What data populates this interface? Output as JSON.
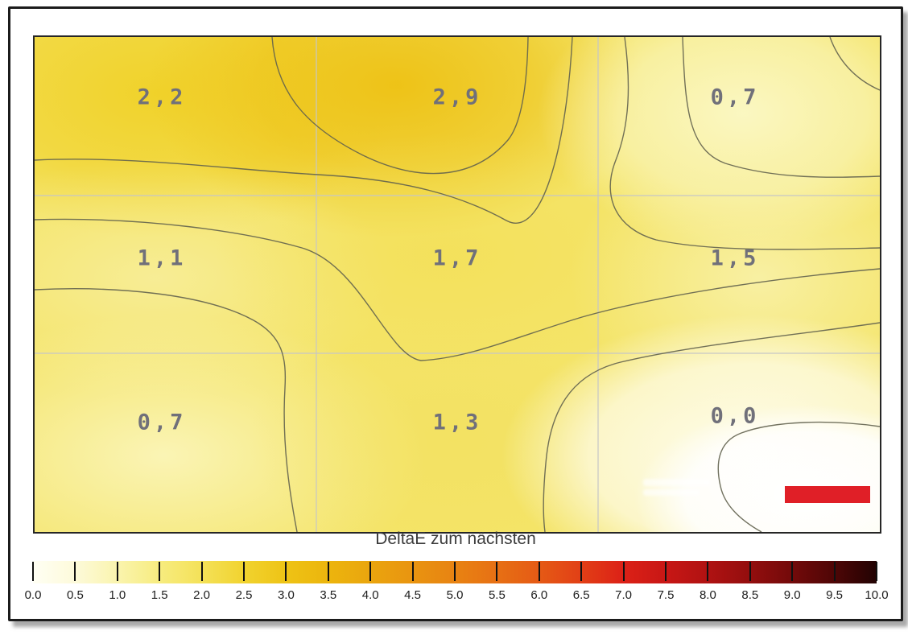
{
  "title": "DeltaE zum nächsten",
  "chart_data": {
    "type": "heatmap",
    "title": "DeltaE zum nächsten",
    "rows": 3,
    "cols": 3,
    "values": [
      [
        2.2,
        2.9,
        0.7
      ],
      [
        1.1,
        1.7,
        1.5
      ],
      [
        0.7,
        1.3,
        0.0
      ]
    ],
    "cell_labels": [
      [
        "2,2",
        "2,9",
        "0,7"
      ],
      [
        "1,1",
        "1,7",
        "1,5"
      ],
      [
        "0,7",
        "1,3",
        "0,0"
      ]
    ],
    "grid": "3x3 light-gray guides, contour lines between levels",
    "legend_position": "bottom",
    "colorbar": {
      "min": 0.0,
      "max": 10.0,
      "step": 0.5,
      "tick_labels": [
        "0.0",
        "0.5",
        "1.0",
        "1.5",
        "2.0",
        "2.5",
        "3.0",
        "3.5",
        "4.0",
        "4.5",
        "5.0",
        "5.5",
        "6.0",
        "6.5",
        "7.0",
        "7.5",
        "8.0",
        "8.5",
        "9.0",
        "9.5",
        "10.0"
      ],
      "stops": [
        "#FFFFF4",
        "#FDFADA",
        "#FAF4AE",
        "#F7EC7F",
        "#F4E158",
        "#F1D32F",
        "#EEC315",
        "#ECB50D",
        "#EAA50E",
        "#E99410",
        "#E88312",
        "#E77014",
        "#E55A15",
        "#E23F16",
        "#DC2117",
        "#C81715",
        "#B01212",
        "#930E0E",
        "#730A0A",
        "#4E0606",
        "#220303"
      ]
    }
  },
  "colors": {
    "marker_red": "#e01f27",
    "contour_line": "#62624e",
    "grid_line": "#c6c6c6",
    "cell_text": "#70707a",
    "frame": "#1b1b1b"
  }
}
